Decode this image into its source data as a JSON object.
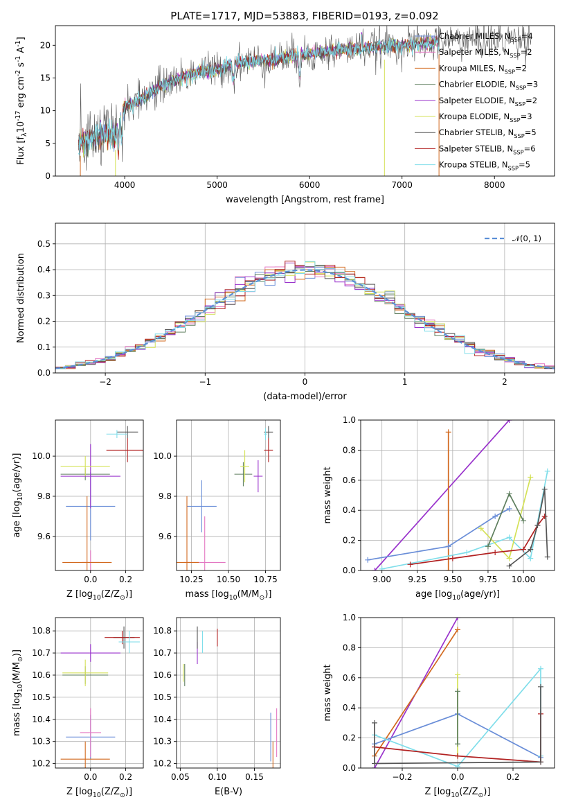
{
  "figure": {
    "title": "PLATE=1717, MJD=53883, FIBERID=0193, z=0.092"
  },
  "colors": {
    "Chabrier MILES": "#6a8ed8",
    "Salpeter MILES": "#e377c2",
    "Kroupa MILES": "#d2691e",
    "Chabrier ELODIE": "#5f7f5f",
    "Salpeter ELODIE": "#9932cc",
    "Kroupa ELODIE": "#d4e157",
    "Chabrier STELIB": "#555555",
    "Salpeter STELIB": "#b22222",
    "Kroupa STELIB": "#80deea",
    "normal": "#5b8fd6"
  },
  "chart_data": [
    {
      "id": "spectrum",
      "type": "line",
      "xlabel": "wavelength [Angstrom, rest frame]",
      "ylabel": "Flux [f$_\\lambda$10$^{-17}$ erg cm$^{-2}$ s$^{-1}$ A$^{-1}$]",
      "xlim": [
        3250,
        8650
      ],
      "ylim": [
        0,
        23
      ],
      "xticks": [
        4000,
        5000,
        6000,
        7000,
        8000
      ],
      "yticks": [
        0,
        5,
        10,
        15,
        20
      ],
      "grid": false,
      "legend_position": "right",
      "legend": [
        {
          "model": "Chabrier MILES",
          "n": "4"
        },
        {
          "model": "Salpeter MILES",
          "n": "2"
        },
        {
          "model": "Kroupa MILES",
          "n": "2"
        },
        {
          "model": "Chabrier ELODIE",
          "n": "3"
        },
        {
          "model": "Salpeter ELODIE",
          "n": "2"
        },
        {
          "model": "Kroupa ELODIE",
          "n": "3"
        },
        {
          "model": "Chabrier STELIB",
          "n": "5"
        },
        {
          "model": "Salpeter STELIB",
          "n": "6"
        },
        {
          "model": "Kroupa STELIB",
          "n": "5"
        }
      ],
      "continuum": {
        "x": [
          3500,
          3600,
          3700,
          3800,
          3900,
          4000,
          4200,
          4400,
          4600,
          4800,
          5000,
          5200,
          5400,
          5600,
          5800,
          6000,
          6200,
          6400,
          6600,
          6800,
          7000,
          7200,
          7400,
          7600,
          7800,
          8000,
          8200,
          8400
        ],
        "y": [
          5,
          5.5,
          6,
          6.5,
          6,
          10.5,
          12,
          13.8,
          15,
          16,
          16.2,
          17.3,
          17.6,
          17.8,
          18.3,
          18.6,
          19,
          19.3,
          19.6,
          19.8,
          20,
          20.2,
          20.6,
          20.9,
          20.6,
          20.8,
          21,
          21.2
        ]
      },
      "series_x_range": {
        "default": [
          3500,
          7400
        ],
        "Chabrier STELIB": [
          3500,
          8400
        ]
      }
    },
    {
      "id": "residuals",
      "type": "line",
      "xlabel": "(data-model)/error",
      "ylabel": "Normed distribution",
      "xlim": [
        -2.5,
        2.5
      ],
      "ylim": [
        0,
        0.58
      ],
      "xticks": [
        -2,
        -1,
        0,
        1,
        2
      ],
      "yticks": [
        0.0,
        0.1,
        0.2,
        0.3,
        0.4,
        0.5
      ],
      "grid": true,
      "legend_position": "top-right",
      "legend_label": "𝒩(0, 1)",
      "bin_width": 0.1
    },
    {
      "id": "z_age",
      "type": "scatter",
      "xlabel": "Z [log$_{10}$($Z/Z_\\odot$)]",
      "ylabel": "age  [log$_{10}$($age/yr$)]",
      "xlim": [
        -0.2,
        0.3
      ],
      "ylim": [
        9.43,
        10.18
      ],
      "xticks": [
        0.0,
        0.2
      ],
      "yticks": [
        9.6,
        9.8,
        10.0
      ],
      "grid": true,
      "points": [
        {
          "model": "Chabrier MILES",
          "x": 0.0,
          "xerr": 0.14,
          "y": 9.75,
          "yerr": 0.17
        },
        {
          "model": "Salpeter MILES",
          "x": 0.0,
          "xerr": 0.05,
          "y": 9.47,
          "yerr": 0.06
        },
        {
          "model": "Kroupa MILES",
          "x": -0.02,
          "xerr": 0.14,
          "y": 9.47,
          "yerr": 0.33
        },
        {
          "model": "Chabrier ELODIE",
          "x": -0.03,
          "xerr": 0.14,
          "y": 9.91,
          "yerr": 0.03
        },
        {
          "model": "Salpeter ELODIE",
          "x": 0.0,
          "xerr": 0.17,
          "y": 9.9,
          "yerr": 0.16
        },
        {
          "model": "Kroupa ELODIE",
          "x": -0.03,
          "xerr": 0.14,
          "y": 9.95,
          "yerr": 0.05
        },
        {
          "model": "Chabrier STELIB",
          "x": 0.21,
          "xerr": 0.06,
          "y": 10.12,
          "yerr": 0.03
        },
        {
          "model": "Salpeter STELIB",
          "x": 0.21,
          "xerr": 0.12,
          "y": 10.03,
          "yerr": 0.06
        },
        {
          "model": "Kroupa STELIB",
          "x": 0.15,
          "xerr": 0.06,
          "y": 10.11,
          "yerr": 0.02
        }
      ]
    },
    {
      "id": "mass_age",
      "type": "scatter",
      "xlabel": "mass [log$_{10}$($M/M_\\odot$)]",
      "ylabel": "",
      "xlim": [
        10.15,
        10.85
      ],
      "ylim": [
        9.43,
        10.18
      ],
      "xticks": [
        10.25,
        10.5,
        10.75
      ],
      "yticks": [
        9.6,
        9.8,
        10.0
      ],
      "grid": true,
      "points": [
        {
          "model": "Chabrier MILES",
          "x": 10.32,
          "xerr": 0.1,
          "y": 9.75,
          "yerr": 0.13
        },
        {
          "model": "Salpeter MILES",
          "x": 10.34,
          "xerr": 0.14,
          "y": 9.47,
          "yerr": 0.23
        },
        {
          "model": "Kroupa MILES",
          "x": 10.22,
          "xerr": 0.08,
          "y": 9.47,
          "yerr": 0.33
        },
        {
          "model": "Chabrier ELODIE",
          "x": 10.6,
          "xerr": 0.06,
          "y": 9.91,
          "yerr": 0.06
        },
        {
          "model": "Salpeter ELODIE",
          "x": 10.7,
          "xerr": 0.03,
          "y": 9.9,
          "yerr": 0.08
        },
        {
          "model": "Kroupa ELODIE",
          "x": 10.61,
          "xerr": 0.03,
          "y": 9.95,
          "yerr": 0.08
        },
        {
          "model": "Chabrier STELIB",
          "x": 10.77,
          "xerr": 0.03,
          "y": 10.12,
          "yerr": 0.03
        },
        {
          "model": "Salpeter STELIB",
          "x": 10.77,
          "xerr": 0.03,
          "y": 10.03,
          "yerr": 0.06
        },
        {
          "model": "Kroupa STELIB",
          "x": 10.75,
          "xerr": 0.01,
          "y": 10.11,
          "yerr": 0.03
        }
      ]
    },
    {
      "id": "age_weight",
      "type": "line",
      "xlabel": "age  [log$_{10}$($age/yr$)]",
      "ylabel": "mass weight",
      "xlim": [
        8.85,
        10.22
      ],
      "ylim": [
        0,
        1.0
      ],
      "xticks": [
        9.0,
        9.25,
        9.5,
        9.75,
        10.0
      ],
      "yticks": [
        0.0,
        0.2,
        0.4,
        0.6,
        0.8,
        1.0
      ],
      "grid": true,
      "series": [
        {
          "model": "Salpeter ELODIE",
          "x": [
            8.95,
            9.9
          ],
          "y": [
            0,
            1.0
          ]
        },
        {
          "model": "Kroupa MILES",
          "x": [
            9.47,
            9.47
          ],
          "y": [
            0.0,
            0.92
          ]
        },
        {
          "model": "Chabrier MILES",
          "x": [
            8.9,
            9.47,
            9.8,
            9.9
          ],
          "y": [
            0.07,
            0.16,
            0.36,
            0.41
          ]
        },
        {
          "model": "Kroupa STELIB",
          "x": [
            9.0,
            9.6,
            9.9,
            10.05,
            10.17
          ],
          "y": [
            0.01,
            0.12,
            0.22,
            0.08,
            0.66
          ]
        },
        {
          "model": "Kroupa ELODIE",
          "x": [
            9.7,
            9.9,
            10.05
          ],
          "y": [
            0.28,
            0.08,
            0.62
          ]
        },
        {
          "model": "Chabrier ELODIE",
          "x": [
            9.75,
            9.9,
            10.0
          ],
          "y": [
            0.16,
            0.51,
            0.33
          ]
        },
        {
          "model": "Salpeter STELIB",
          "x": [
            9.2,
            9.5,
            9.8,
            10.0,
            10.1,
            10.15
          ],
          "y": [
            0.04,
            0.08,
            0.12,
            0.14,
            0.3,
            0.36
          ]
        },
        {
          "model": "Chabrier STELIB",
          "x": [
            9.9,
            10.05,
            10.1,
            10.15,
            10.17
          ],
          "y": [
            0.03,
            0.14,
            0.3,
            0.54,
            0.09
          ]
        }
      ]
    },
    {
      "id": "z_mass",
      "type": "scatter",
      "xlabel": "Z [log$_{10}$($Z/Z_\\odot$)]",
      "ylabel": "mass [log$_{10}$($M/M_\\odot$)]",
      "xlim": [
        -0.2,
        0.3
      ],
      "ylim": [
        10.18,
        10.86
      ],
      "xticks": [
        0.0,
        0.2
      ],
      "yticks": [
        10.2,
        10.3,
        10.4,
        10.5,
        10.6,
        10.7,
        10.8
      ],
      "grid": true,
      "points": [
        {
          "model": "Chabrier MILES",
          "x": 0.0,
          "xerr": 0.14,
          "y": 10.32,
          "yerr": 0.1
        },
        {
          "model": "Salpeter MILES",
          "x": 0.0,
          "xerr": 0.06,
          "y": 10.34,
          "yerr": 0.11
        },
        {
          "model": "Kroupa MILES",
          "x": -0.03,
          "xerr": 0.14,
          "y": 10.22,
          "yerr": 0.08
        },
        {
          "model": "Chabrier ELODIE",
          "x": -0.03,
          "xerr": 0.13,
          "y": 10.6,
          "yerr": 0.04
        },
        {
          "model": "Salpeter ELODIE",
          "x": 0.0,
          "xerr": 0.17,
          "y": 10.7,
          "yerr": 0.04
        },
        {
          "model": "Kroupa ELODIE",
          "x": -0.03,
          "xerr": 0.13,
          "y": 10.61,
          "yerr": 0.06
        },
        {
          "model": "Chabrier STELIB",
          "x": 0.19,
          "xerr": 0.06,
          "y": 10.77,
          "yerr": 0.05
        },
        {
          "model": "Salpeter STELIB",
          "x": 0.18,
          "xerr": 0.1,
          "y": 10.77,
          "yerr": 0.03
        },
        {
          "model": "Kroupa STELIB",
          "x": 0.22,
          "xerr": 0.06,
          "y": 10.75,
          "yerr": 0.05
        }
      ]
    },
    {
      "id": "ebv_mass",
      "type": "scatter",
      "xlabel": "E(B-V)",
      "ylabel": "",
      "xlim": [
        0.045,
        0.185
      ],
      "ylim": [
        10.18,
        10.86
      ],
      "xticks": [
        0.05,
        0.1,
        0.15
      ],
      "yticks": [
        10.2,
        10.3,
        10.4,
        10.5,
        10.6,
        10.7,
        10.8
      ],
      "grid": true,
      "points": [
        {
          "model": "Chabrier MILES",
          "x": 0.172,
          "y": 10.32,
          "yerr": 0.11
        },
        {
          "model": "Salpeter MILES",
          "x": 0.18,
          "y": 10.34,
          "yerr": 0.11
        },
        {
          "model": "Kroupa MILES",
          "x": 0.175,
          "y": 10.22,
          "yerr": 0.08
        },
        {
          "model": "Chabrier ELODIE",
          "x": 0.056,
          "y": 10.6,
          "yerr": 0.05
        },
        {
          "model": "Salpeter ELODIE",
          "x": 0.073,
          "y": 10.7,
          "yerr": 0.05
        },
        {
          "model": "Kroupa ELODIE",
          "x": 0.054,
          "y": 10.61,
          "yerr": 0.04
        },
        {
          "model": "Chabrier STELIB",
          "x": 0.073,
          "y": 10.77,
          "yerr": 0.05
        },
        {
          "model": "Salpeter STELIB",
          "x": 0.1,
          "y": 10.77,
          "yerr": 0.04
        },
        {
          "model": "Kroupa STELIB",
          "x": 0.08,
          "y": 10.75,
          "yerr": 0.05
        }
      ]
    },
    {
      "id": "z_weight",
      "type": "line",
      "xlabel": "Z [log$_{10}$($Z/Z_\\odot$)]",
      "ylabel": "mass weight",
      "xlim": [
        -0.35,
        0.35
      ],
      "ylim": [
        0,
        1.0
      ],
      "xticks": [
        -0.2,
        0.0,
        0.2
      ],
      "yticks": [
        0.0,
        0.2,
        0.4,
        0.6,
        0.8,
        1.0
      ],
      "grid": true,
      "series": [
        {
          "model": "Salpeter ELODIE",
          "x": [
            -0.3,
            0.0
          ],
          "y": [
            0.0,
            1.0
          ]
        },
        {
          "model": "Kroupa MILES",
          "x": [
            -0.3,
            0.0
          ],
          "y": [
            0.08,
            0.92
          ]
        },
        {
          "model": "Chabrier MILES",
          "x": [
            -0.3,
            0.0,
            0.3
          ],
          "y": [
            0.16,
            0.36,
            0.07
          ]
        },
        {
          "model": "Kroupa STELIB",
          "x": [
            -0.3,
            0.0,
            0.3,
            0.3
          ],
          "y": [
            0.22,
            0.01,
            0.66,
            0.08
          ]
        },
        {
          "model": "Kroupa ELODIE",
          "x": [
            0.0,
            0.0
          ],
          "y": [
            0.08,
            0.62
          ]
        },
        {
          "model": "Chabrier ELODIE",
          "x": [
            0.0,
            0.0
          ],
          "y": [
            0.16,
            0.51
          ]
        },
        {
          "model": "Salpeter STELIB",
          "x": [
            -0.3,
            0.0,
            0.3,
            0.3
          ],
          "y": [
            0.14,
            0.08,
            0.04,
            0.36
          ]
        },
        {
          "model": "Chabrier STELIB",
          "x": [
            -0.3,
            -0.3,
            0.3,
            0.3
          ],
          "y": [
            0.3,
            0.03,
            0.04,
            0.54
          ]
        }
      ]
    }
  ]
}
